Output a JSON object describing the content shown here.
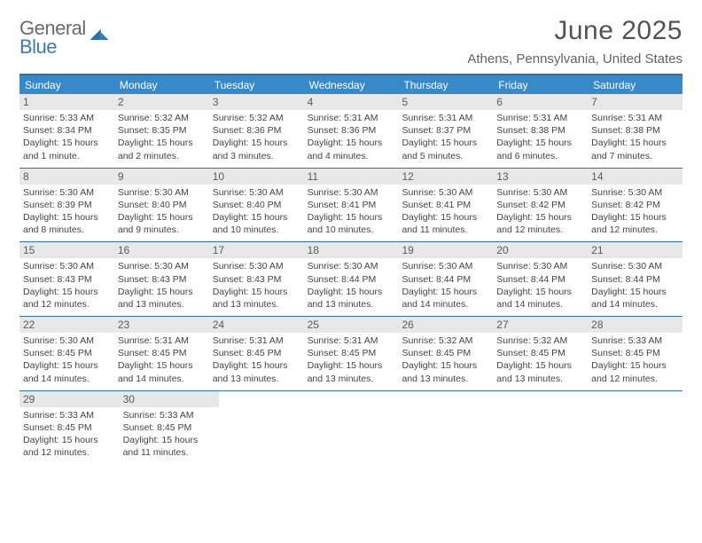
{
  "brand": {
    "name_line1": "General",
    "name_line2": "Blue"
  },
  "title": "June 2025",
  "location": "Athens, Pennsylvania, United States",
  "colors": {
    "header_bar": "#3889c7",
    "rule": "#2f6fa8",
    "day_num_bg": "#e8e8e8",
    "text_dark": "#444444",
    "text_gray": "#636363",
    "logo_gray": "#6a6a6a",
    "logo_blue": "#3a7ab8",
    "page_bg": "#ffffff"
  },
  "weekdays": [
    "Sunday",
    "Monday",
    "Tuesday",
    "Wednesday",
    "Thursday",
    "Friday",
    "Saturday"
  ],
  "weeks": [
    [
      {
        "n": "1",
        "sunrise": "Sunrise: 5:33 AM",
        "sunset": "Sunset: 8:34 PM",
        "daylight": "Daylight: 15 hours and 1 minute."
      },
      {
        "n": "2",
        "sunrise": "Sunrise: 5:32 AM",
        "sunset": "Sunset: 8:35 PM",
        "daylight": "Daylight: 15 hours and 2 minutes."
      },
      {
        "n": "3",
        "sunrise": "Sunrise: 5:32 AM",
        "sunset": "Sunset: 8:36 PM",
        "daylight": "Daylight: 15 hours and 3 minutes."
      },
      {
        "n": "4",
        "sunrise": "Sunrise: 5:31 AM",
        "sunset": "Sunset: 8:36 PM",
        "daylight": "Daylight: 15 hours and 4 minutes."
      },
      {
        "n": "5",
        "sunrise": "Sunrise: 5:31 AM",
        "sunset": "Sunset: 8:37 PM",
        "daylight": "Daylight: 15 hours and 5 minutes."
      },
      {
        "n": "6",
        "sunrise": "Sunrise: 5:31 AM",
        "sunset": "Sunset: 8:38 PM",
        "daylight": "Daylight: 15 hours and 6 minutes."
      },
      {
        "n": "7",
        "sunrise": "Sunrise: 5:31 AM",
        "sunset": "Sunset: 8:38 PM",
        "daylight": "Daylight: 15 hours and 7 minutes."
      }
    ],
    [
      {
        "n": "8",
        "sunrise": "Sunrise: 5:30 AM",
        "sunset": "Sunset: 8:39 PM",
        "daylight": "Daylight: 15 hours and 8 minutes."
      },
      {
        "n": "9",
        "sunrise": "Sunrise: 5:30 AM",
        "sunset": "Sunset: 8:40 PM",
        "daylight": "Daylight: 15 hours and 9 minutes."
      },
      {
        "n": "10",
        "sunrise": "Sunrise: 5:30 AM",
        "sunset": "Sunset: 8:40 PM",
        "daylight": "Daylight: 15 hours and 10 minutes."
      },
      {
        "n": "11",
        "sunrise": "Sunrise: 5:30 AM",
        "sunset": "Sunset: 8:41 PM",
        "daylight": "Daylight: 15 hours and 10 minutes."
      },
      {
        "n": "12",
        "sunrise": "Sunrise: 5:30 AM",
        "sunset": "Sunset: 8:41 PM",
        "daylight": "Daylight: 15 hours and 11 minutes."
      },
      {
        "n": "13",
        "sunrise": "Sunrise: 5:30 AM",
        "sunset": "Sunset: 8:42 PM",
        "daylight": "Daylight: 15 hours and 12 minutes."
      },
      {
        "n": "14",
        "sunrise": "Sunrise: 5:30 AM",
        "sunset": "Sunset: 8:42 PM",
        "daylight": "Daylight: 15 hours and 12 minutes."
      }
    ],
    [
      {
        "n": "15",
        "sunrise": "Sunrise: 5:30 AM",
        "sunset": "Sunset: 8:43 PM",
        "daylight": "Daylight: 15 hours and 12 minutes."
      },
      {
        "n": "16",
        "sunrise": "Sunrise: 5:30 AM",
        "sunset": "Sunset: 8:43 PM",
        "daylight": "Daylight: 15 hours and 13 minutes."
      },
      {
        "n": "17",
        "sunrise": "Sunrise: 5:30 AM",
        "sunset": "Sunset: 8:43 PM",
        "daylight": "Daylight: 15 hours and 13 minutes."
      },
      {
        "n": "18",
        "sunrise": "Sunrise: 5:30 AM",
        "sunset": "Sunset: 8:44 PM",
        "daylight": "Daylight: 15 hours and 13 minutes."
      },
      {
        "n": "19",
        "sunrise": "Sunrise: 5:30 AM",
        "sunset": "Sunset: 8:44 PM",
        "daylight": "Daylight: 15 hours and 14 minutes."
      },
      {
        "n": "20",
        "sunrise": "Sunrise: 5:30 AM",
        "sunset": "Sunset: 8:44 PM",
        "daylight": "Daylight: 15 hours and 14 minutes."
      },
      {
        "n": "21",
        "sunrise": "Sunrise: 5:30 AM",
        "sunset": "Sunset: 8:44 PM",
        "daylight": "Daylight: 15 hours and 14 minutes."
      }
    ],
    [
      {
        "n": "22",
        "sunrise": "Sunrise: 5:30 AM",
        "sunset": "Sunset: 8:45 PM",
        "daylight": "Daylight: 15 hours and 14 minutes."
      },
      {
        "n": "23",
        "sunrise": "Sunrise: 5:31 AM",
        "sunset": "Sunset: 8:45 PM",
        "daylight": "Daylight: 15 hours and 14 minutes."
      },
      {
        "n": "24",
        "sunrise": "Sunrise: 5:31 AM",
        "sunset": "Sunset: 8:45 PM",
        "daylight": "Daylight: 15 hours and 13 minutes."
      },
      {
        "n": "25",
        "sunrise": "Sunrise: 5:31 AM",
        "sunset": "Sunset: 8:45 PM",
        "daylight": "Daylight: 15 hours and 13 minutes."
      },
      {
        "n": "26",
        "sunrise": "Sunrise: 5:32 AM",
        "sunset": "Sunset: 8:45 PM",
        "daylight": "Daylight: 15 hours and 13 minutes."
      },
      {
        "n": "27",
        "sunrise": "Sunrise: 5:32 AM",
        "sunset": "Sunset: 8:45 PM",
        "daylight": "Daylight: 15 hours and 13 minutes."
      },
      {
        "n": "28",
        "sunrise": "Sunrise: 5:33 AM",
        "sunset": "Sunset: 8:45 PM",
        "daylight": "Daylight: 15 hours and 12 minutes."
      }
    ],
    [
      {
        "n": "29",
        "sunrise": "Sunrise: 5:33 AM",
        "sunset": "Sunset: 8:45 PM",
        "daylight": "Daylight: 15 hours and 12 minutes."
      },
      {
        "n": "30",
        "sunrise": "Sunrise: 5:33 AM",
        "sunset": "Sunset: 8:45 PM",
        "daylight": "Daylight: 15 hours and 11 minutes."
      },
      null,
      null,
      null,
      null,
      null
    ]
  ]
}
